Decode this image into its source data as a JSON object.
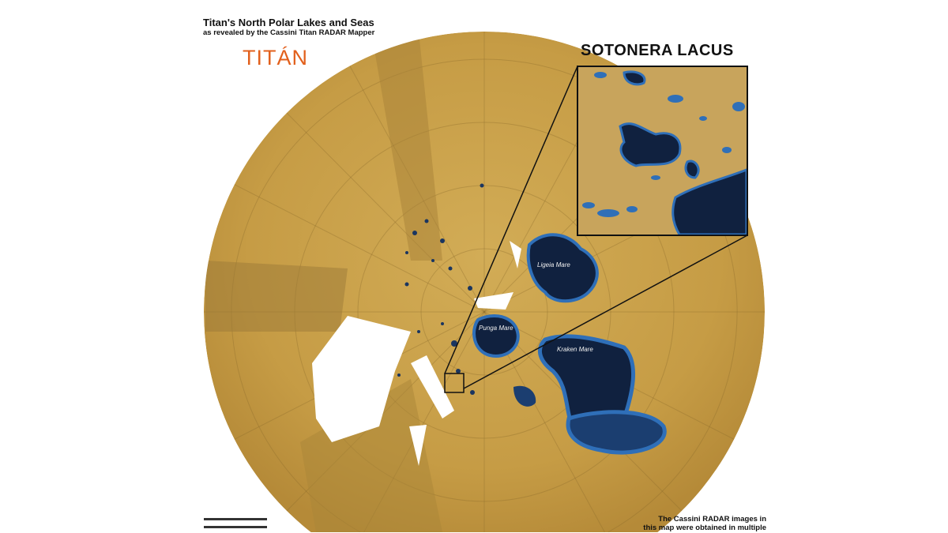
{
  "header": {
    "title": "Titan's North Polar Lakes and Seas",
    "subtitle": "as revealed by the Cassini Titan RADAR Mapper",
    "overlay_label": "TITÁN"
  },
  "inset": {
    "title": "SOTONERA LACUS"
  },
  "map": {
    "labels": [
      "Ligeia Mare",
      "Punga Mare",
      "Kraken Mare"
    ],
    "colors": {
      "terrain": "#c9a14a",
      "lake": "#10213f",
      "lake_edge": "#2f6fb8",
      "no_data": "#ffffff"
    }
  },
  "footer": {
    "note_line1": "The Cassini RADAR images in",
    "note_line2": "this map were obtained  in multiple"
  }
}
